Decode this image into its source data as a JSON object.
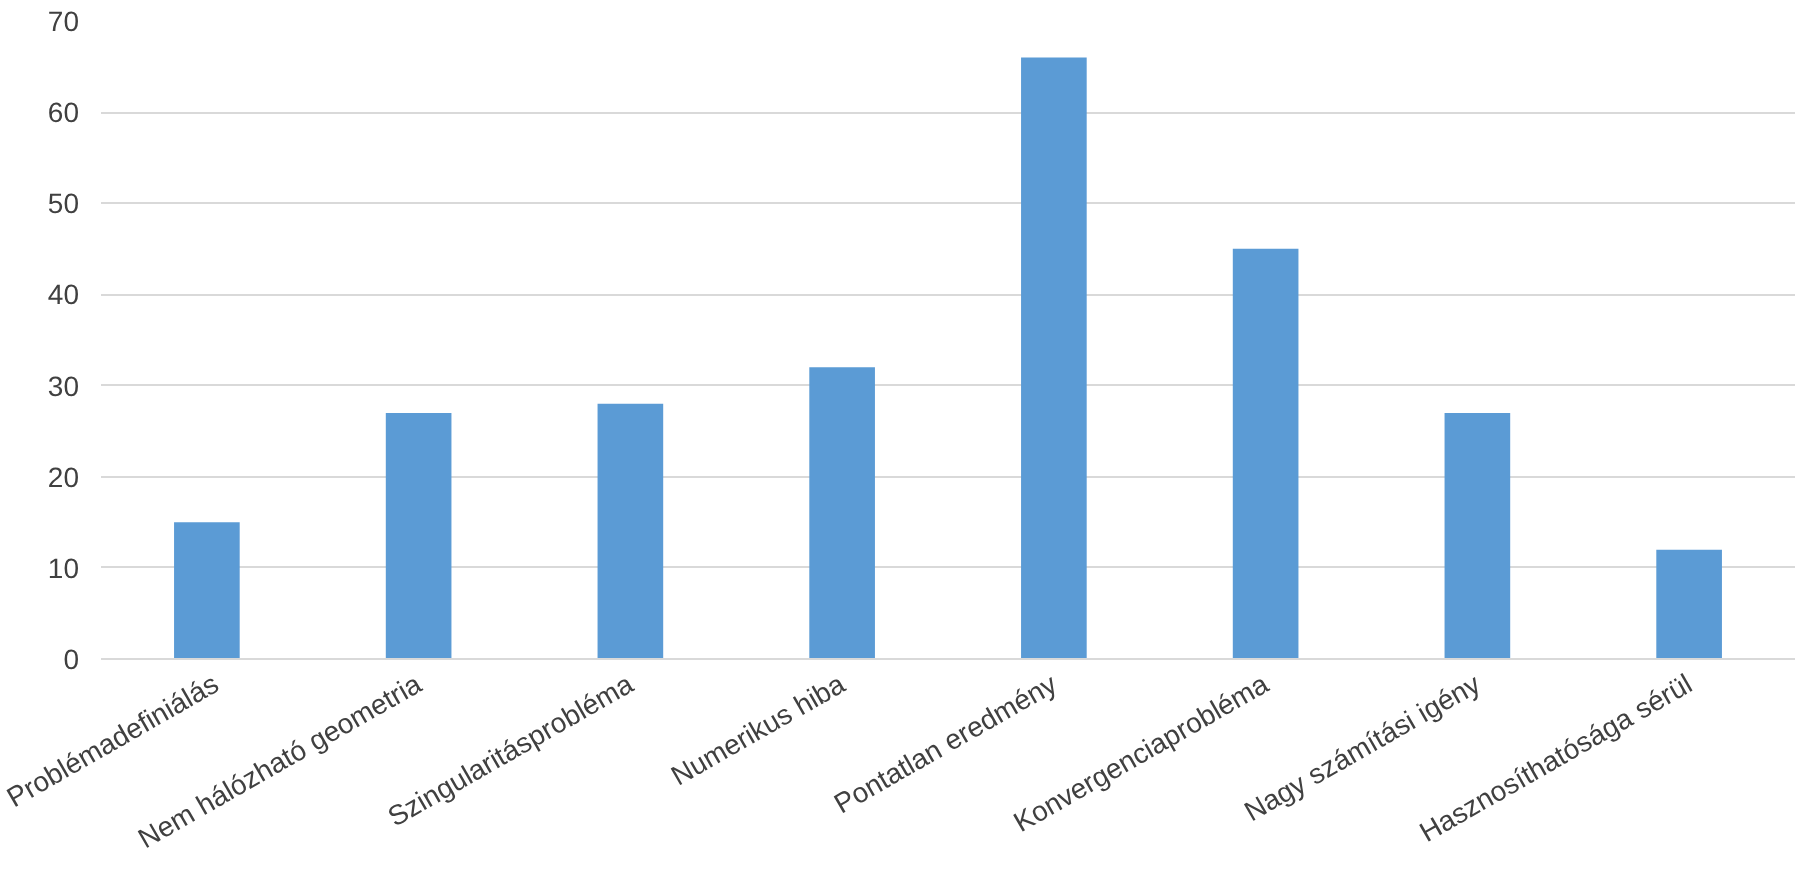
{
  "chart_data": {
    "type": "bar",
    "categories": [
      "Problémadefiniálás",
      "Nem hálózható geometria",
      "Szingularitásprobléma",
      "Numerikus hiba",
      "Pontatlan eredmény",
      "Konvergenciaprobléma",
      "Nagy számítási igény",
      "Hasznosíthatósága sérül"
    ],
    "values": [
      15,
      27,
      28,
      32,
      66,
      45,
      27,
      12
    ],
    "color": "#5b9bd5",
    "ylim": [
      0,
      70
    ],
    "yticks": [
      0,
      10,
      20,
      30,
      40,
      50,
      60,
      70
    ],
    "grid": "y"
  }
}
